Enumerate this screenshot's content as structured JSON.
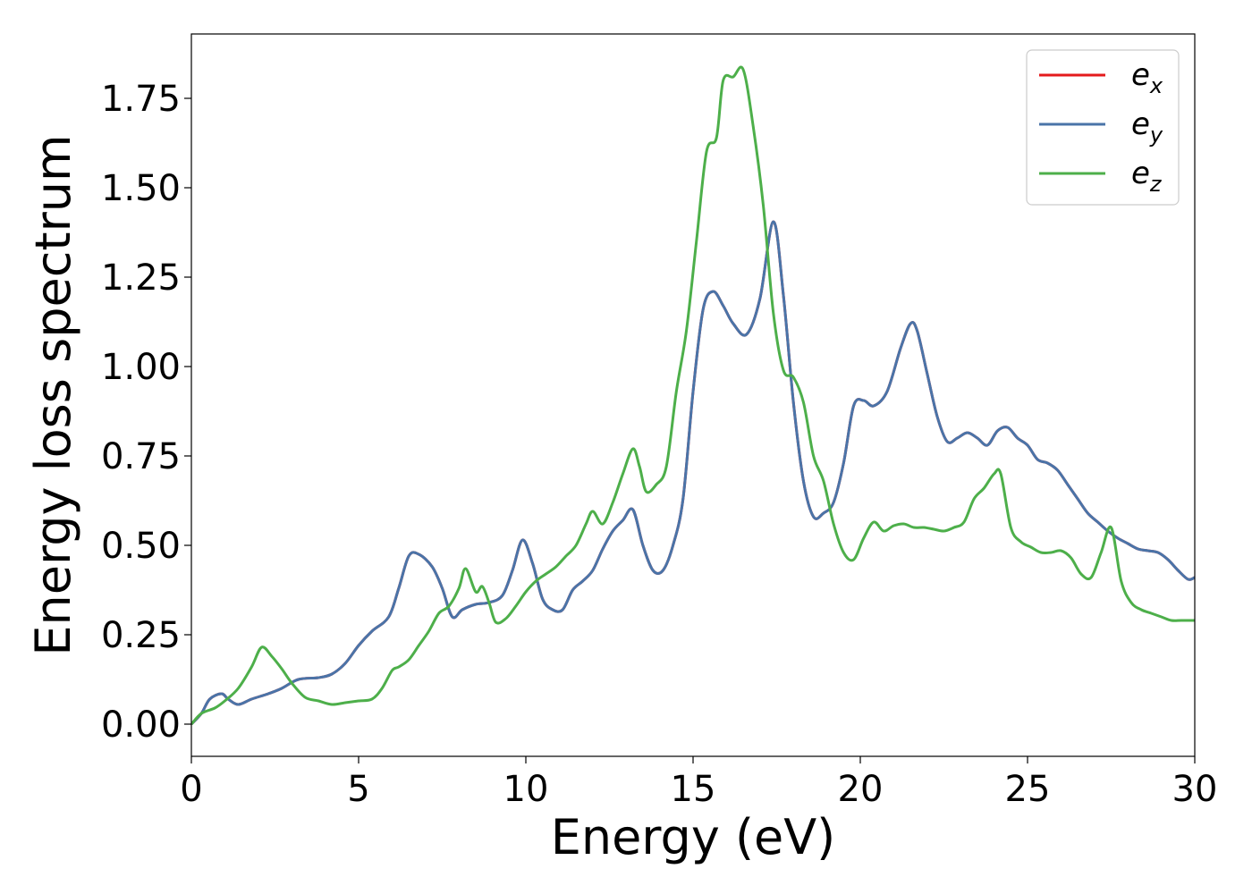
{
  "chart_data": {
    "type": "line",
    "title": "",
    "xlabel": "Energy (eV)",
    "ylabel": "Energy loss spectrum",
    "xlim": [
      0,
      30
    ],
    "ylim": [
      -0.09,
      1.93
    ],
    "xticks": [
      0,
      5,
      10,
      15,
      20,
      25,
      30
    ],
    "xtick_labels": [
      "0",
      "5",
      "10",
      "15",
      "20",
      "25",
      "30"
    ],
    "yticks": [
      0,
      0.25,
      0.5,
      0.75,
      1.0,
      1.25,
      1.5,
      1.75
    ],
    "ytick_labels": [
      "0.00",
      "0.25",
      "0.50",
      "0.75",
      "1.00",
      "1.25",
      "1.50",
      "1.75"
    ],
    "grid": false,
    "legend_position": "top-right",
    "series": [
      {
        "name": "e_x",
        "legend_base": "e",
        "legend_sub": "x",
        "color": "#e41a1c",
        "x": [
          0,
          0.3,
          0.55,
          0.9,
          1.1,
          1.4,
          1.8,
          2.3,
          2.7,
          3.2,
          3.8,
          4.2,
          4.6,
          5.0,
          5.4,
          5.9,
          6.2,
          6.5,
          6.8,
          7.2,
          7.5,
          7.8,
          8.1,
          8.5,
          8.9,
          9.3,
          9.6,
          9.9,
          10.2,
          10.5,
          10.8,
          11.1,
          11.4,
          11.7,
          12.0,
          12.3,
          12.6,
          12.9,
          13.2,
          13.5,
          13.8,
          14.1,
          14.4,
          14.7,
          15.0,
          15.3,
          15.6,
          15.9,
          16.2,
          16.6,
          17.0,
          17.4,
          17.7,
          18.0,
          18.3,
          18.6,
          18.9,
          19.2,
          19.5,
          19.8,
          20.1,
          20.4,
          20.8,
          21.2,
          21.5,
          21.7,
          22.0,
          22.3,
          22.6,
          22.9,
          23.2,
          23.5,
          23.8,
          24.1,
          24.4,
          24.7,
          25.0,
          25.3,
          25.6,
          25.9,
          26.2,
          26.5,
          26.8,
          27.1,
          27.4,
          27.7,
          28.0,
          28.3,
          28.6,
          28.9,
          29.2,
          29.5,
          29.8,
          30.0
        ],
        "y": [
          0.0,
          0.03,
          0.07,
          0.085,
          0.07,
          0.055,
          0.07,
          0.085,
          0.1,
          0.125,
          0.13,
          0.14,
          0.17,
          0.22,
          0.26,
          0.3,
          0.38,
          0.47,
          0.475,
          0.44,
          0.38,
          0.3,
          0.32,
          0.335,
          0.34,
          0.36,
          0.43,
          0.515,
          0.45,
          0.35,
          0.32,
          0.32,
          0.375,
          0.4,
          0.43,
          0.49,
          0.54,
          0.57,
          0.6,
          0.5,
          0.43,
          0.43,
          0.5,
          0.63,
          0.93,
          1.16,
          1.21,
          1.17,
          1.12,
          1.09,
          1.19,
          1.405,
          1.2,
          0.9,
          0.68,
          0.58,
          0.59,
          0.62,
          0.73,
          0.89,
          0.905,
          0.89,
          0.93,
          1.05,
          1.12,
          1.1,
          0.98,
          0.86,
          0.79,
          0.8,
          0.815,
          0.8,
          0.78,
          0.82,
          0.83,
          0.8,
          0.78,
          0.74,
          0.73,
          0.71,
          0.67,
          0.63,
          0.59,
          0.565,
          0.54,
          0.52,
          0.505,
          0.49,
          0.485,
          0.48,
          0.46,
          0.43,
          0.405,
          0.41
        ]
      },
      {
        "name": "e_y",
        "legend_base": "e",
        "legend_sub": "y",
        "color": "#4a74a8",
        "x": [
          0,
          0.3,
          0.55,
          0.9,
          1.1,
          1.4,
          1.8,
          2.3,
          2.7,
          3.2,
          3.8,
          4.2,
          4.6,
          5.0,
          5.4,
          5.9,
          6.2,
          6.5,
          6.8,
          7.2,
          7.5,
          7.8,
          8.1,
          8.5,
          8.9,
          9.3,
          9.6,
          9.9,
          10.2,
          10.5,
          10.8,
          11.1,
          11.4,
          11.7,
          12.0,
          12.3,
          12.6,
          12.9,
          13.2,
          13.5,
          13.8,
          14.1,
          14.4,
          14.7,
          15.0,
          15.3,
          15.6,
          15.9,
          16.2,
          16.6,
          17.0,
          17.4,
          17.7,
          18.0,
          18.3,
          18.6,
          18.9,
          19.2,
          19.5,
          19.8,
          20.1,
          20.4,
          20.8,
          21.2,
          21.5,
          21.7,
          22.0,
          22.3,
          22.6,
          22.9,
          23.2,
          23.5,
          23.8,
          24.1,
          24.4,
          24.7,
          25.0,
          25.3,
          25.6,
          25.9,
          26.2,
          26.5,
          26.8,
          27.1,
          27.4,
          27.7,
          28.0,
          28.3,
          28.6,
          28.9,
          29.2,
          29.5,
          29.8,
          30.0
        ],
        "y": [
          0.0,
          0.03,
          0.07,
          0.085,
          0.07,
          0.055,
          0.07,
          0.085,
          0.1,
          0.125,
          0.13,
          0.14,
          0.17,
          0.22,
          0.26,
          0.3,
          0.38,
          0.47,
          0.475,
          0.44,
          0.38,
          0.3,
          0.32,
          0.335,
          0.34,
          0.36,
          0.43,
          0.515,
          0.45,
          0.35,
          0.32,
          0.32,
          0.375,
          0.4,
          0.43,
          0.49,
          0.54,
          0.57,
          0.6,
          0.5,
          0.43,
          0.43,
          0.5,
          0.63,
          0.93,
          1.16,
          1.21,
          1.17,
          1.12,
          1.09,
          1.19,
          1.405,
          1.2,
          0.9,
          0.68,
          0.58,
          0.59,
          0.62,
          0.73,
          0.89,
          0.905,
          0.89,
          0.93,
          1.05,
          1.12,
          1.1,
          0.98,
          0.86,
          0.79,
          0.8,
          0.815,
          0.8,
          0.78,
          0.82,
          0.83,
          0.8,
          0.78,
          0.74,
          0.73,
          0.71,
          0.67,
          0.63,
          0.59,
          0.565,
          0.54,
          0.52,
          0.505,
          0.49,
          0.485,
          0.48,
          0.46,
          0.43,
          0.405,
          0.41
        ]
      },
      {
        "name": "e_z",
        "legend_base": "e",
        "legend_sub": "z",
        "color": "#4daf4a",
        "x": [
          0,
          0.3,
          0.7,
          1.0,
          1.4,
          1.8,
          2.1,
          2.4,
          2.7,
          3.0,
          3.4,
          3.8,
          4.2,
          4.6,
          5.0,
          5.4,
          5.7,
          6.0,
          6.2,
          6.5,
          6.8,
          7.1,
          7.4,
          7.7,
          8.0,
          8.2,
          8.5,
          8.7,
          8.9,
          9.1,
          9.4,
          9.7,
          10.0,
          10.3,
          10.6,
          10.9,
          11.2,
          11.5,
          11.8,
          12.0,
          12.3,
          12.6,
          12.9,
          13.2,
          13.4,
          13.6,
          13.9,
          14.2,
          14.5,
          14.8,
          15.1,
          15.4,
          15.7,
          15.9,
          16.2,
          16.5,
          16.8,
          17.1,
          17.4,
          17.7,
          18.0,
          18.3,
          18.6,
          18.9,
          19.2,
          19.5,
          19.8,
          20.1,
          20.4,
          20.7,
          21.0,
          21.3,
          21.6,
          21.9,
          22.2,
          22.5,
          22.8,
          23.1,
          23.4,
          23.7,
          24.0,
          24.2,
          24.5,
          24.8,
          25.1,
          25.4,
          25.7,
          26.0,
          26.3,
          26.6,
          26.9,
          27.2,
          27.5,
          27.8,
          28.1,
          28.4,
          28.7,
          29.0,
          29.3,
          29.6,
          30.0
        ],
        "y": [
          0.0,
          0.03,
          0.045,
          0.065,
          0.1,
          0.16,
          0.215,
          0.19,
          0.155,
          0.115,
          0.075,
          0.065,
          0.055,
          0.06,
          0.065,
          0.07,
          0.1,
          0.15,
          0.16,
          0.18,
          0.22,
          0.26,
          0.31,
          0.33,
          0.38,
          0.435,
          0.37,
          0.385,
          0.34,
          0.285,
          0.295,
          0.33,
          0.37,
          0.4,
          0.42,
          0.44,
          0.47,
          0.5,
          0.56,
          0.595,
          0.56,
          0.62,
          0.7,
          0.77,
          0.72,
          0.65,
          0.67,
          0.72,
          0.93,
          1.1,
          1.35,
          1.6,
          1.64,
          1.8,
          1.81,
          1.83,
          1.67,
          1.45,
          1.15,
          0.99,
          0.97,
          0.9,
          0.75,
          0.68,
          0.56,
          0.48,
          0.46,
          0.52,
          0.565,
          0.54,
          0.555,
          0.56,
          0.55,
          0.55,
          0.545,
          0.54,
          0.55,
          0.565,
          0.63,
          0.66,
          0.7,
          0.7,
          0.55,
          0.51,
          0.495,
          0.48,
          0.48,
          0.485,
          0.465,
          0.42,
          0.41,
          0.48,
          0.55,
          0.4,
          0.34,
          0.32,
          0.31,
          0.3,
          0.29,
          0.29,
          0.29
        ]
      }
    ]
  }
}
